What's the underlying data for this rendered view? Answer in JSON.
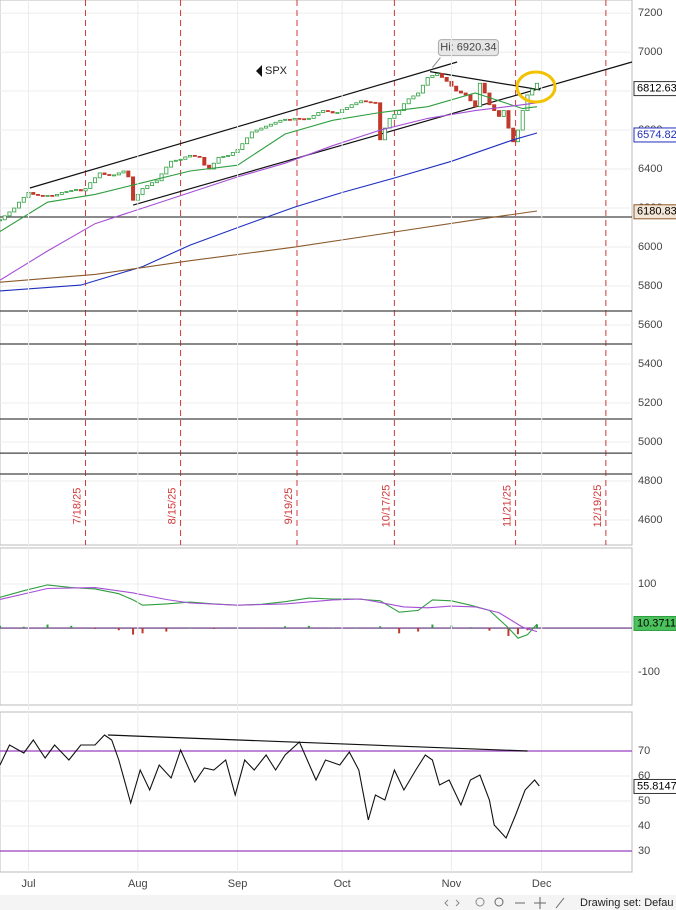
{
  "chart_data": [
    {
      "type": "candlestick",
      "symbol": "SPX",
      "xlim": [
        0,
        133
      ],
      "ylim": [
        4472,
        7267
      ],
      "yticks": [
        4600,
        4800,
        5000,
        5200,
        5400,
        5600,
        5800,
        6000,
        6200,
        6400,
        6600,
        6800,
        7000,
        7200
      ],
      "up_color": "#2e9e3f",
      "down_color": "#c0392b",
      "values": [
        6140,
        6160,
        6180,
        6200,
        6230,
        6255,
        6280,
        6270,
        6265,
        6260,
        6265,
        6262,
        6270,
        6280,
        6285,
        6290,
        6295,
        6288,
        6300,
        6330,
        6355,
        6380,
        6372,
        6368,
        6370,
        6380,
        6390,
        6360,
        6240,
        6270,
        6300,
        6315,
        6330,
        6340,
        6375,
        6410,
        6440,
        6445,
        6450,
        6462,
        6470,
        6465,
        6460,
        6420,
        6400,
        6430,
        6460,
        6465,
        6470,
        6485,
        6500,
        6530,
        6560,
        6590,
        6600,
        6610,
        6620,
        6630,
        6640,
        6650,
        6655,
        6652,
        6660,
        6658,
        6655,
        6660,
        6675,
        6690,
        6700,
        6695,
        6688,
        6690,
        6705,
        6715,
        6730,
        6740,
        6750,
        6745,
        6742,
        6740,
        6550,
        6610,
        6660,
        6680,
        6700,
        6735,
        6760,
        6775,
        6790,
        6830,
        6870,
        6880,
        6890,
        6870,
        6850,
        6825,
        6800,
        6790,
        6780,
        6750,
        6720,
        6840,
        6790,
        6730,
        6700,
        6670,
        6700,
        6610,
        6540,
        6600,
        6700,
        6780,
        6810,
        6840
      ],
      "series": [
        {
          "color": "#2e9e3f",
          "x": [
            0,
            10,
            20,
            30,
            40,
            50,
            60,
            70,
            80,
            90,
            100,
            110,
            113
          ],
          "values": [
            6080,
            6230,
            6270,
            6330,
            6390,
            6420,
            6580,
            6650,
            6690,
            6720,
            6790,
            6710,
            6720
          ]
        },
        {
          "color": "#a64fd6",
          "x": [
            0,
            10,
            20,
            30,
            40,
            50,
            60,
            70,
            80,
            90,
            100,
            110,
            113
          ],
          "values": [
            5830,
            5980,
            6120,
            6200,
            6280,
            6360,
            6430,
            6520,
            6600,
            6660,
            6700,
            6730,
            6740
          ]
        },
        {
          "color": "#1f2fbf",
          "x": [
            0,
            17,
            30,
            40,
            50,
            62,
            72,
            83,
            95,
            108,
            113
          ],
          "values": [
            5775,
            5805,
            5900,
            6010,
            6100,
            6205,
            6280,
            6354,
            6440,
            6550,
            6585
          ]
        },
        {
          "color": "#8a5a2b",
          "x": [
            0,
            20,
            40,
            62,
            83,
            100,
            113
          ],
          "values": [
            5820,
            5860,
            5930,
            6000,
            6077,
            6140,
            6185
          ]
        }
      ],
      "hlines": [
        6154,
        5672,
        5503,
        5118,
        4943,
        4836
      ],
      "hline_color": "#444",
      "trendlines": [
        {
          "x": [
            6.3,
            96.2
          ],
          "values": [
            6303,
            6949
          ]
        },
        {
          "x": [
            28,
            133
          ],
          "values": [
            6215,
            6949
          ]
        },
        {
          "x": [
            90.5,
            113.7
          ],
          "values": [
            6900,
            6806
          ]
        }
      ],
      "trend_color": "#111",
      "high": {
        "x": 91,
        "value": 6920.34,
        "label": "Hi: 6920.34"
      },
      "vlines": [
        {
          "value": 18,
          "label": "7/18/25"
        },
        {
          "value": 38,
          "label": "8/15/25"
        },
        {
          "value": 62.5,
          "label": "9/19/25"
        },
        {
          "value": 83,
          "label": "10/17/25"
        },
        {
          "value": 108.5,
          "label": "11/21/25"
        },
        {
          "value": 127.5,
          "label": "12/19/25"
        }
      ],
      "vline_color": "#d0393b",
      "last_labels": [
        {
          "value": 6812.63,
          "color": "#000",
          "fill": "#fff",
          "stroke": "#333"
        },
        {
          "value": 6574.82,
          "color": "#1f2fbf",
          "fill": "#fff",
          "stroke": "#1f2fbf"
        },
        {
          "value": 6180.83,
          "color": "#000",
          "fill": "#f3e6d6",
          "stroke": "#8a5a2b"
        }
      ]
    },
    {
      "type": "macd",
      "xlim": [
        0,
        133
      ],
      "ylim": [
        -175,
        182
      ],
      "yticks": [
        -100,
        0,
        100
      ],
      "up_color": "#2e9e3f",
      "down_color": "#c0392b",
      "series": [
        {
          "color": "#2e9e3f",
          "x": [
            0,
            5,
            10,
            15,
            20,
            25,
            28,
            30,
            35,
            40,
            45,
            50,
            55,
            60,
            65,
            70,
            75,
            80,
            84,
            88,
            91,
            95,
            99,
            103,
            107,
            109,
            111,
            113
          ],
          "values": [
            70,
            85,
            98,
            92,
            89,
            78,
            64,
            52,
            55,
            59,
            55,
            52,
            54,
            60,
            68,
            66,
            66,
            62,
            36,
            40,
            64,
            62,
            52,
            40,
            0,
            -23,
            -15,
            9
          ]
        },
        {
          "color": "#a64fd6",
          "x": [
            0,
            10,
            20,
            28,
            35,
            40,
            50,
            60,
            70,
            76,
            80,
            85,
            90,
            95,
            100,
            105,
            110,
            113
          ],
          "values": [
            65,
            90,
            92,
            80,
            65,
            57,
            52,
            55,
            64,
            66,
            58,
            48,
            46,
            50,
            48,
            35,
            2,
            -8
          ]
        }
      ],
      "histogram": {
        "x": [
          0,
          5,
          10,
          15,
          20,
          25,
          28,
          30,
          35,
          40,
          45,
          50,
          55,
          60,
          65,
          70,
          75,
          80,
          84,
          88,
          91,
          95,
          99,
          103,
          107,
          109,
          111,
          113
        ],
        "values": [
          5,
          3,
          8,
          5,
          -2,
          -5,
          -15,
          -12,
          -8,
          0,
          -2,
          0,
          -1,
          4,
          5,
          1,
          0,
          4,
          -12,
          -8,
          8,
          6,
          2,
          -6,
          -18,
          -14,
          -5,
          8
        ]
      },
      "hlines": [
        0
      ],
      "hline_color": "#5a2a7a",
      "last_labels": [
        {
          "value": 10.3711,
          "color": "#000",
          "fill": "#4cc25c",
          "stroke": "#2e9e3f"
        }
      ]
    },
    {
      "type": "line",
      "xlim": [
        0,
        133
      ],
      "ylim": [
        21.6,
        85.6
      ],
      "yticks": [
        30,
        40,
        50,
        60,
        70
      ],
      "series": [
        {
          "color": "#111",
          "x": [
            0,
            2,
            5,
            7,
            9.5,
            11.5,
            14.5,
            17,
            20,
            22,
            23.5,
            25,
            27.5,
            29.5,
            31.5,
            33.5,
            36,
            38,
            41,
            43,
            45,
            47.5,
            49.5,
            51.5,
            53.5,
            56,
            58,
            60,
            63,
            66.5,
            68.5,
            71.5,
            73.5,
            75.5,
            77.5,
            79,
            81,
            83,
            85,
            87.5,
            89.5,
            91,
            92.5,
            94.5,
            97,
            99,
            101,
            103,
            104,
            106.5,
            108.5,
            110.5,
            112.5,
            113.5
          ],
          "values": [
            64.4,
            72.4,
            69.2,
            74.4,
            67.2,
            72.4,
            66.4,
            72.4,
            72.4,
            76.4,
            74.4,
            66.4,
            49.2,
            62.4,
            54.4,
            64.4,
            59.2,
            70.4,
            57.6,
            63.2,
            62.4,
            66.4,
            52.4,
            66.4,
            62.4,
            68.4,
            62.4,
            68.4,
            73.6,
            58.4,
            66.4,
            64.4,
            69.6,
            62.4,
            42.4,
            52.4,
            50.4,
            62.4,
            54.4,
            62.4,
            68.4,
            66.4,
            56.4,
            58.4,
            48.4,
            58.4,
            60.4,
            50.4,
            40.4,
            35.2,
            44.4,
            54.4,
            58.4,
            56
          ]
        }
      ],
      "hlines": [
        70,
        30
      ],
      "hline_color": "#9b3fbf",
      "trendlines": [
        {
          "x": [
            22.7,
            111
          ],
          "values": [
            76.4,
            70
          ]
        }
      ],
      "trend_color": "#111",
      "last_labels": [
        {
          "value": 55.8147,
          "color": "#000",
          "fill": "#fff",
          "stroke": "#333"
        }
      ],
      "xticks": [
        {
          "value": 6,
          "label": "Jul"
        },
        {
          "value": 29,
          "label": "Aug"
        },
        {
          "value": 50,
          "label": "Sep"
        },
        {
          "value": 72,
          "label": "Oct"
        },
        {
          "value": 95,
          "label": "Nov"
        },
        {
          "value": 114,
          "label": "Dec"
        }
      ]
    }
  ],
  "toolbar": {
    "label": "Drawing set: Defau"
  }
}
